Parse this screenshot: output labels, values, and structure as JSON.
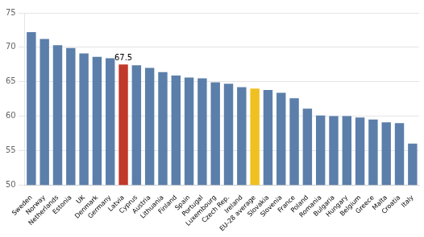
{
  "chart_data": {
    "type": "bar",
    "categories": [
      "Sweden",
      "Norway",
      "Netherlands",
      "Estonia",
      "UK",
      "Denmark",
      "Germany",
      "Latvia",
      "Cyprus",
      "Austria",
      "Lithuania",
      "Finland",
      "Spain",
      "Portugal",
      "Luxembourg",
      "Czech Rep.",
      "Ireland",
      "EU-28 average",
      "Slovakia",
      "Slovenia",
      "France",
      "Poland",
      "Romania",
      "Bulgaria",
      "Hungary",
      "Belgium",
      "Greece",
      "Malta",
      "Croatia",
      "Italy"
    ],
    "values": [
      72.2,
      71.2,
      70.3,
      69.9,
      69.1,
      68.6,
      68.4,
      67.5,
      67.4,
      67.0,
      66.4,
      65.9,
      65.6,
      65.5,
      64.9,
      64.7,
      64.2,
      64.0,
      63.8,
      63.4,
      62.6,
      61.1,
      60.1,
      60.0,
      60.0,
      59.8,
      59.5,
      59.1,
      59.0,
      56.0
    ],
    "colors": [
      "#5b7faa",
      "#5b7faa",
      "#5b7faa",
      "#5b7faa",
      "#5b7faa",
      "#5b7faa",
      "#5b7faa",
      "#c0392b",
      "#5b7faa",
      "#5b7faa",
      "#5b7faa",
      "#5b7faa",
      "#5b7faa",
      "#5b7faa",
      "#5b7faa",
      "#5b7faa",
      "#5b7faa",
      "#f0c020",
      "#5b7faa",
      "#5b7faa",
      "#5b7faa",
      "#5b7faa",
      "#5b7faa",
      "#5b7faa",
      "#5b7faa",
      "#5b7faa",
      "#5b7faa",
      "#5b7faa",
      "#5b7faa",
      "#5b7faa"
    ],
    "annotations": [
      {
        "text": "67.5",
        "category": "Latvia"
      }
    ],
    "ylim": [
      50,
      75
    ],
    "yticks": [
      50,
      55,
      60,
      65,
      70,
      75
    ],
    "grid": true
  }
}
